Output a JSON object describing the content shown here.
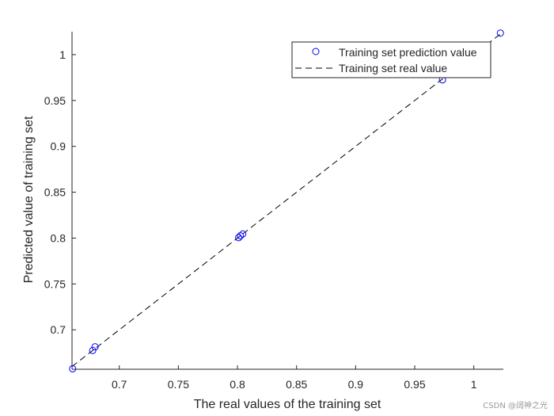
{
  "chart_data": {
    "type": "scatter",
    "xlabel": "The real values of the training set",
    "ylabel": "Predicted value of training set",
    "xlim": [
      0.66,
      1.025
    ],
    "ylim": [
      0.657,
      1.025
    ],
    "xticks": [
      0.7,
      0.75,
      0.8,
      0.85,
      0.9,
      0.95,
      1
    ],
    "xtick_labels": [
      "0.7",
      "0.75",
      "0.8",
      "0.85",
      "0.9",
      "0.95",
      "1"
    ],
    "yticks": [
      0.7,
      0.75,
      0.8,
      0.85,
      0.9,
      0.95,
      1
    ],
    "ytick_labels": [
      "0.7",
      "0.75",
      "0.8",
      "0.85",
      "0.9",
      "0.95",
      "1"
    ],
    "grid": false,
    "legend_position": "top-right",
    "series": [
      {
        "name": "Training set prediction value",
        "style": "marker-circle",
        "color": "#0000ff",
        "points": [
          {
            "x": 0.6605,
            "y": 0.6575
          },
          {
            "x": 0.6775,
            "y": 0.6775
          },
          {
            "x": 0.6795,
            "y": 0.6815
          },
          {
            "x": 0.801,
            "y": 0.8005
          },
          {
            "x": 0.8025,
            "y": 0.8025
          },
          {
            "x": 0.8045,
            "y": 0.8045
          },
          {
            "x": 0.9735,
            "y": 0.9725
          },
          {
            "x": 1.0225,
            "y": 1.0235
          }
        ]
      },
      {
        "name": "Training set real value",
        "style": "dashed-line",
        "color": "#000000",
        "points": [
          {
            "x": 0.66,
            "y": 0.66
          },
          {
            "x": 1.025,
            "y": 1.025
          }
        ]
      }
    ]
  },
  "watermark": "CSDN @阔神之光"
}
